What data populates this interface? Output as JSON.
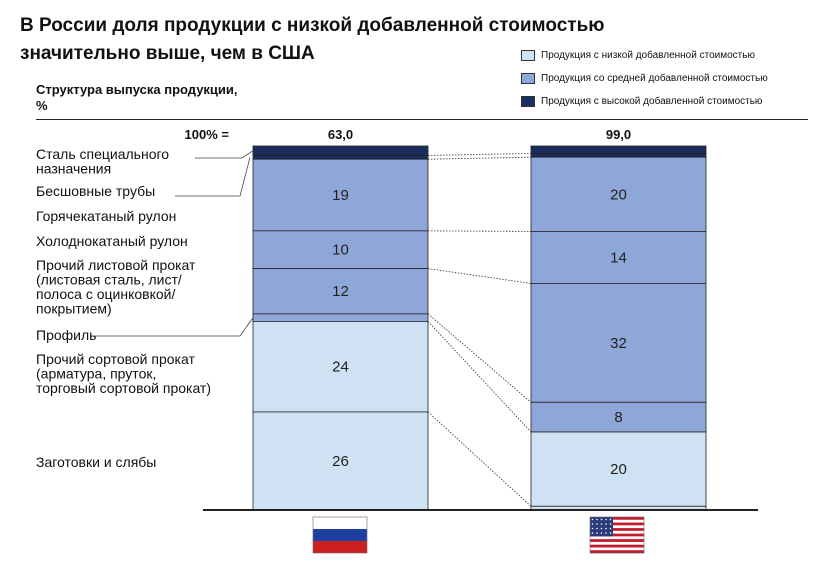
{
  "title_line1": "В России доля продукции с низкой добавленной стоимостью",
  "title_line2": "значительно выше, чем в США",
  "subtitle_line1": "Структура выпуска продукции,",
  "subtitle_line2": "%",
  "legend": [
    {
      "label": "Продукция с низкой добавленной стоимостью",
      "color": "#cfe2f3"
    },
    {
      "label": "Продукция со средней добавленной стоимостью",
      "color": "#8fa7d8"
    },
    {
      "label": "Продукция с высокой добавленной стоимостью",
      "color": "#1a2d5e"
    }
  ],
  "chart_data": {
    "type": "bar",
    "stacked": true,
    "total_prefix": "100% =",
    "columns": [
      {
        "flag": "russia-flag",
        "total": "63,0"
      },
      {
        "flag": "usa-flag",
        "total": "99,0"
      }
    ],
    "segments": [
      {
        "label": "Сталь специального назначения",
        "label_lines": [
          "Сталь специального",
          "назначения"
        ],
        "tier": "high",
        "values": [
          2.5,
          2
        ],
        "labels": [
          "",
          ""
        ]
      },
      {
        "label": "Бесшовные трубы",
        "label_lines": [
          "Бесшовные трубы"
        ],
        "tier": "high",
        "values": [
          1,
          1
        ],
        "labels": [
          "",
          ""
        ]
      },
      {
        "label": "Горячекатаный рулон",
        "label_lines": [
          "Горячекатаный рулон"
        ],
        "tier": "medium",
        "values": [
          19,
          20
        ],
        "labels": [
          "19",
          "20"
        ]
      },
      {
        "label": "Холоднокатаный рулон",
        "label_lines": [
          "Холоднокатаный рулон"
        ],
        "tier": "medium",
        "values": [
          10,
          14
        ],
        "labels": [
          "10",
          "14"
        ]
      },
      {
        "label": "Прочий листовой прокат (листовая сталь, лист/полоса с оцинковкой/покрытием)",
        "label_lines": [
          "Прочий листовой прокат",
          "(листовая сталь, лист/",
          "полоса с оцинковкой/",
          "покрытием)"
        ],
        "tier": "medium",
        "values": [
          12,
          32
        ],
        "labels": [
          "12",
          "32"
        ]
      },
      {
        "label": "Профиль",
        "label_lines": [
          "Профиль"
        ],
        "tier": "medium",
        "values": [
          2,
          8
        ],
        "labels": [
          "",
          "8"
        ]
      },
      {
        "label": "Прочий сортовой прокат (арматура, пруток, торговый сортовой прокат)",
        "label_lines": [
          "Прочий сортовой прокат",
          "(арматура, пруток,",
          "торговый сортовой прокат)"
        ],
        "tier": "low",
        "values": [
          24,
          20
        ],
        "labels": [
          "24",
          "20"
        ]
      },
      {
        "label": "Заготовки и слябы",
        "label_lines": [
          "Заготовки и слябы"
        ],
        "tier": "low",
        "values": [
          26,
          1
        ],
        "labels": [
          "26",
          ""
        ]
      }
    ]
  }
}
